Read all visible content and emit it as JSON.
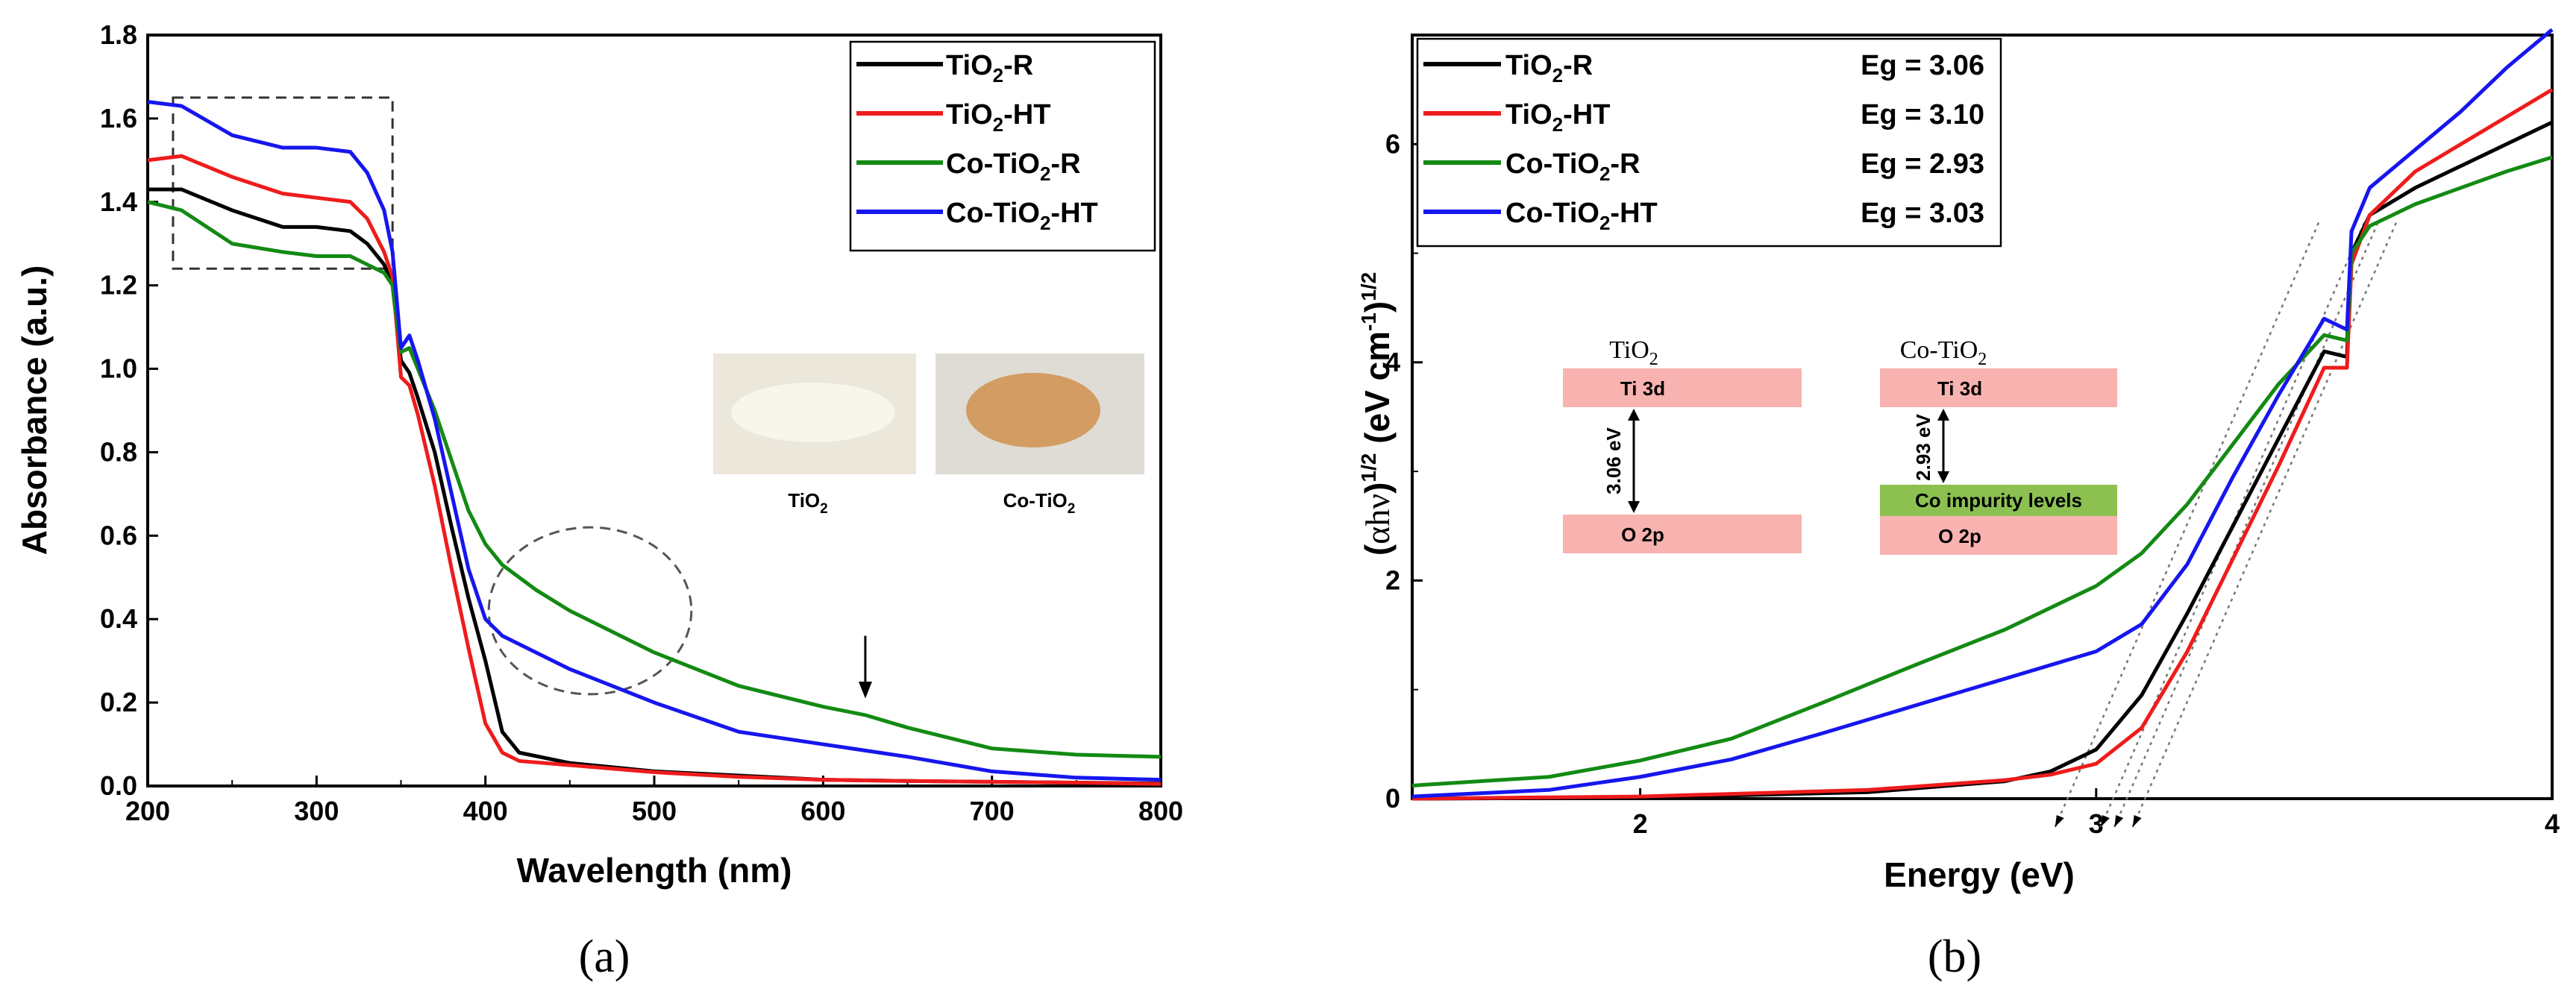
{
  "chart_data": [
    {
      "id": "a",
      "panel_label": "(a)",
      "type": "line",
      "xlabel": "Wavelength (nm)",
      "ylabel": "Absorbance (a.u.)",
      "xlim": [
        200,
        800
      ],
      "ylim": [
        0.0,
        1.8
      ],
      "xticks": [
        "200",
        "300",
        "400",
        "500",
        "600",
        "700",
        "800"
      ],
      "yticks": [
        "0.0",
        "0.2",
        "0.4",
        "0.6",
        "0.8",
        "1.0",
        "1.2",
        "1.4",
        "1.6",
        "1.8"
      ],
      "legend_position": "top-right",
      "series": [
        {
          "name": "TiO2-R",
          "label_base": "TiO",
          "label_sub": "2",
          "label_rest": "-R",
          "color": "#000000",
          "x": [
            200,
            220,
            250,
            280,
            300,
            320,
            330,
            340,
            345,
            350,
            355,
            360,
            370,
            380,
            390,
            400,
            410,
            420,
            450,
            500,
            550,
            600,
            650,
            700,
            750,
            800
          ],
          "y": [
            1.43,
            1.43,
            1.38,
            1.34,
            1.34,
            1.33,
            1.3,
            1.25,
            1.2,
            1.02,
            0.99,
            0.93,
            0.8,
            0.62,
            0.45,
            0.3,
            0.13,
            0.08,
            0.055,
            0.035,
            0.025,
            0.015,
            0.012,
            0.01,
            0.008,
            0.006
          ]
        },
        {
          "name": "TiO2-HT",
          "label_base": "TiO",
          "label_sub": "2",
          "label_rest": "-HT",
          "color": "#ee1c1c",
          "x": [
            200,
            220,
            250,
            280,
            300,
            320,
            330,
            340,
            345,
            350,
            355,
            360,
            370,
            380,
            390,
            400,
            410,
            420,
            450,
            500,
            550,
            600,
            650,
            700,
            750,
            800
          ],
          "y": [
            1.5,
            1.51,
            1.46,
            1.42,
            1.41,
            1.4,
            1.36,
            1.28,
            1.22,
            0.98,
            0.96,
            0.89,
            0.72,
            0.52,
            0.33,
            0.15,
            0.08,
            0.06,
            0.05,
            0.033,
            0.022,
            0.015,
            0.012,
            0.01,
            0.008,
            0.005
          ]
        },
        {
          "name": "Co-TiO2-R",
          "label_base": "Co-TiO",
          "label_sub": "2",
          "label_rest": "-R",
          "color": "#138a13",
          "x": [
            200,
            220,
            250,
            280,
            300,
            320,
            330,
            340,
            345,
            350,
            355,
            360,
            370,
            380,
            390,
            400,
            410,
            430,
            450,
            500,
            550,
            600,
            625,
            650,
            700,
            750,
            800
          ],
          "y": [
            1.4,
            1.38,
            1.3,
            1.28,
            1.27,
            1.27,
            1.25,
            1.23,
            1.2,
            1.04,
            1.05,
            1.0,
            0.9,
            0.78,
            0.66,
            0.58,
            0.53,
            0.47,
            0.42,
            0.32,
            0.24,
            0.19,
            0.17,
            0.14,
            0.09,
            0.075,
            0.07
          ]
        },
        {
          "name": "Co-TiO2-HT",
          "label_base": "Co-TiO",
          "label_sub": "2",
          "label_rest": "-HT",
          "color": "#1616ee",
          "x": [
            200,
            220,
            250,
            280,
            300,
            320,
            330,
            340,
            345,
            350,
            355,
            360,
            370,
            380,
            390,
            400,
            410,
            430,
            450,
            500,
            550,
            600,
            650,
            700,
            750,
            800
          ],
          "y": [
            1.64,
            1.63,
            1.56,
            1.53,
            1.53,
            1.52,
            1.47,
            1.38,
            1.28,
            1.05,
            1.08,
            1.02,
            0.88,
            0.7,
            0.52,
            0.4,
            0.36,
            0.32,
            0.28,
            0.2,
            0.13,
            0.1,
            0.07,
            0.035,
            0.02,
            0.015
          ]
        }
      ],
      "inset": {
        "photo1_label": "TiO",
        "photo1_sub": "2",
        "photo2_label": "Co-TiO",
        "photo2_sub": "2",
        "photo1_color": "#ece7db",
        "photo2_color": "#d39c62"
      },
      "annotations": {
        "dashed_box": {
          "x": [
            215,
            345
          ],
          "y": [
            1.24,
            1.65
          ]
        },
        "dashed_circle": {
          "center": [
            462,
            0.42
          ],
          "rx": 60,
          "ry": 0.2
        },
        "arrow_at_x": 625
      }
    },
    {
      "id": "b",
      "panel_label": "(b)",
      "type": "line",
      "xlabel": "Energy (eV)",
      "ylabel_parts": {
        "open": "(",
        "alpha": "α",
        "h": "h",
        "nu": "ν",
        "close": ")",
        "exp1": "1/2",
        "unit": " (eV cm",
        "exp2": "-1",
        "close2": ")",
        "exp3": "1/2"
      },
      "xlim": [
        1.5,
        4.0
      ],
      "ylim": [
        0,
        7.0
      ],
      "xticks": [
        "2",
        "3",
        "4"
      ],
      "yticks": [
        "0",
        "2",
        "4",
        "6"
      ],
      "legend_position": "top-left",
      "series": [
        {
          "name": "TiO2-R",
          "label_base": "TiO",
          "label_sub": "2",
          "label_rest": "-R",
          "eg_label": "Eg = 3.06",
          "color": "#000000",
          "x": [
            1.5,
            2.0,
            2.5,
            2.8,
            2.9,
            3.0,
            3.1,
            3.2,
            3.3,
            3.4,
            3.5,
            3.55,
            3.56,
            3.6,
            3.7,
            3.8,
            3.9,
            4.0
          ],
          "y": [
            0,
            0.01,
            0.06,
            0.16,
            0.25,
            0.45,
            0.95,
            1.7,
            2.5,
            3.3,
            4.1,
            4.05,
            5.0,
            5.35,
            5.6,
            5.8,
            6.0,
            6.2
          ]
        },
        {
          "name": "TiO2-HT",
          "label_base": "TiO",
          "label_sub": "2",
          "label_rest": "-HT",
          "eg_label": "Eg = 3.10",
          "color": "#ee1c1c",
          "x": [
            1.5,
            2.0,
            2.5,
            2.8,
            2.9,
            3.0,
            3.1,
            3.2,
            3.3,
            3.4,
            3.5,
            3.55,
            3.56,
            3.6,
            3.7,
            3.8,
            3.9,
            4.0
          ],
          "y": [
            0,
            0.02,
            0.08,
            0.17,
            0.22,
            0.32,
            0.65,
            1.35,
            2.2,
            3.05,
            3.95,
            3.95,
            4.9,
            5.35,
            5.75,
            6.0,
            6.25,
            6.5
          ]
        },
        {
          "name": "Co-TiO2-R",
          "label_base": "Co-TiO",
          "label_sub": "2",
          "label_rest": "-R",
          "eg_label": "Eg = 2.93",
          "color": "#138a13",
          "x": [
            1.5,
            1.8,
            2.0,
            2.2,
            2.4,
            2.6,
            2.8,
            3.0,
            3.1,
            3.2,
            3.3,
            3.4,
            3.5,
            3.55,
            3.56,
            3.6,
            3.7,
            3.8,
            3.9,
            4.0
          ],
          "y": [
            0.12,
            0.2,
            0.35,
            0.55,
            0.88,
            1.22,
            1.55,
            1.95,
            2.25,
            2.7,
            3.25,
            3.8,
            4.25,
            4.2,
            5.0,
            5.25,
            5.45,
            5.6,
            5.75,
            5.88
          ]
        },
        {
          "name": "Co-TiO2-HT",
          "label_base": "Co-TiO",
          "label_sub": "2",
          "label_rest": "-HT",
          "eg_label": "Eg = 3.03",
          "color": "#1616ee",
          "x": [
            1.5,
            1.8,
            2.0,
            2.2,
            2.4,
            2.6,
            2.8,
            3.0,
            3.1,
            3.2,
            3.3,
            3.4,
            3.5,
            3.55,
            3.56,
            3.6,
            3.7,
            3.8,
            3.9,
            4.0
          ],
          "y": [
            0.02,
            0.08,
            0.2,
            0.36,
            0.6,
            0.85,
            1.1,
            1.35,
            1.6,
            2.15,
            2.95,
            3.7,
            4.4,
            4.3,
            5.2,
            5.6,
            5.95,
            6.3,
            6.7,
            7.05
          ]
        }
      ],
      "extrapolation_intercepts": [
        2.93,
        3.03,
        3.06,
        3.1
      ],
      "band_diagram": {
        "left_title": "TiO",
        "left_title_sub": "2",
        "right_title": "Co-TiO",
        "right_title_sub": "2",
        "cb_label": "Ti 3d",
        "vb_label": "O 2p",
        "left_gap": "3.06 eV",
        "right_gap": "2.93 eV",
        "impurity_label": "Co impurity levels",
        "band_color": "#f8b3b0",
        "impurity_color": "#8cc152"
      }
    }
  ]
}
